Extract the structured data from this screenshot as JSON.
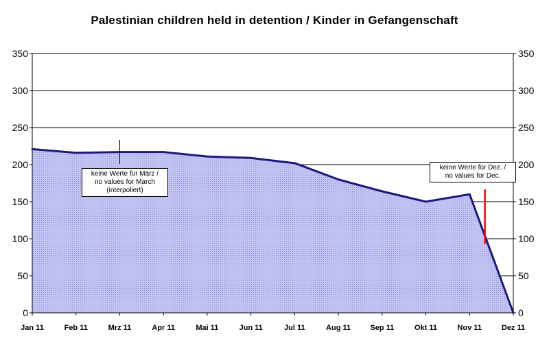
{
  "chart_data": {
    "type": "area",
    "title": "Palestinian children held in detention / Kinder in Gefangenschaft",
    "categories": [
      "Jan 11",
      "Feb 11",
      "Mrz 11",
      "Apr 11",
      "Mai 11",
      "Jun 11",
      "Jul 11",
      "Aug 11",
      "Sep 11",
      "Okt 11",
      "Nov 11",
      "Dez 11"
    ],
    "values": [
      221,
      216,
      217,
      217,
      211,
      209,
      202,
      180,
      164,
      150,
      160,
      0
    ],
    "ylim": [
      0,
      350
    ],
    "yticks": [
      0,
      50,
      100,
      150,
      200,
      250,
      300,
      350
    ],
    "grid": true,
    "colors": {
      "fill": "#b8b8f0",
      "line": "#1a1a7a",
      "marker": "#ff0000"
    },
    "annotations": [
      {
        "lines": [
          "keine Werte für März /",
          "no values for March",
          "(interpoliert)"
        ]
      },
      {
        "lines": [
          "keine Werte für Dez. /",
          "no values for Dec."
        ]
      }
    ]
  }
}
